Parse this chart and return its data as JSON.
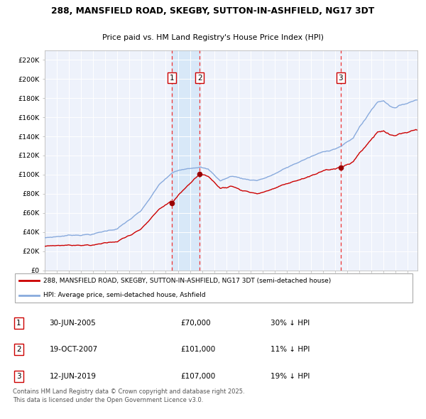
{
  "title_line1": "288, MANSFIELD ROAD, SKEGBY, SUTTON-IN-ASHFIELD, NG17 3DT",
  "title_line2": "Price paid vs. HM Land Registry's House Price Index (HPI)",
  "legend_property": "288, MANSFIELD ROAD, SKEGBY, SUTTON-IN-ASHFIELD, NG17 3DT (semi-detached house)",
  "legend_hpi": "HPI: Average price, semi-detached house, Ashfield",
  "transactions": [
    {
      "num": 1,
      "date": "30-JUN-2005",
      "price": 70000,
      "pct": "30% ↓ HPI",
      "date_dec": 2005.49
    },
    {
      "num": 2,
      "date": "19-OCT-2007",
      "price": 101000,
      "pct": "11% ↓ HPI",
      "date_dec": 2007.8
    },
    {
      "num": 3,
      "date": "12-JUN-2019",
      "price": 107000,
      "pct": "19% ↓ HPI",
      "date_dec": 2019.45
    }
  ],
  "footer": "Contains HM Land Registry data © Crown copyright and database right 2025.\nThis data is licensed under the Open Government Licence v3.0.",
  "ylim": [
    0,
    230000
  ],
  "xlim_start": 1995.0,
  "xlim_end": 2025.8,
  "background_color": "#ffffff",
  "plot_bg_color": "#eef2fb",
  "grid_color": "#ffffff",
  "hpi_color": "#88aadd",
  "property_color": "#cc0000",
  "dashed_color": "#ee3333",
  "shade_color": "#d8e8f8",
  "ytick_labels": [
    "£0",
    "£20K",
    "£40K",
    "£60K",
    "£80K",
    "£100K",
    "£120K",
    "£140K",
    "£160K",
    "£180K",
    "£200K",
    "£220K"
  ],
  "ytick_values": [
    0,
    20000,
    40000,
    60000,
    80000,
    100000,
    120000,
    140000,
    160000,
    180000,
    200000,
    220000
  ]
}
